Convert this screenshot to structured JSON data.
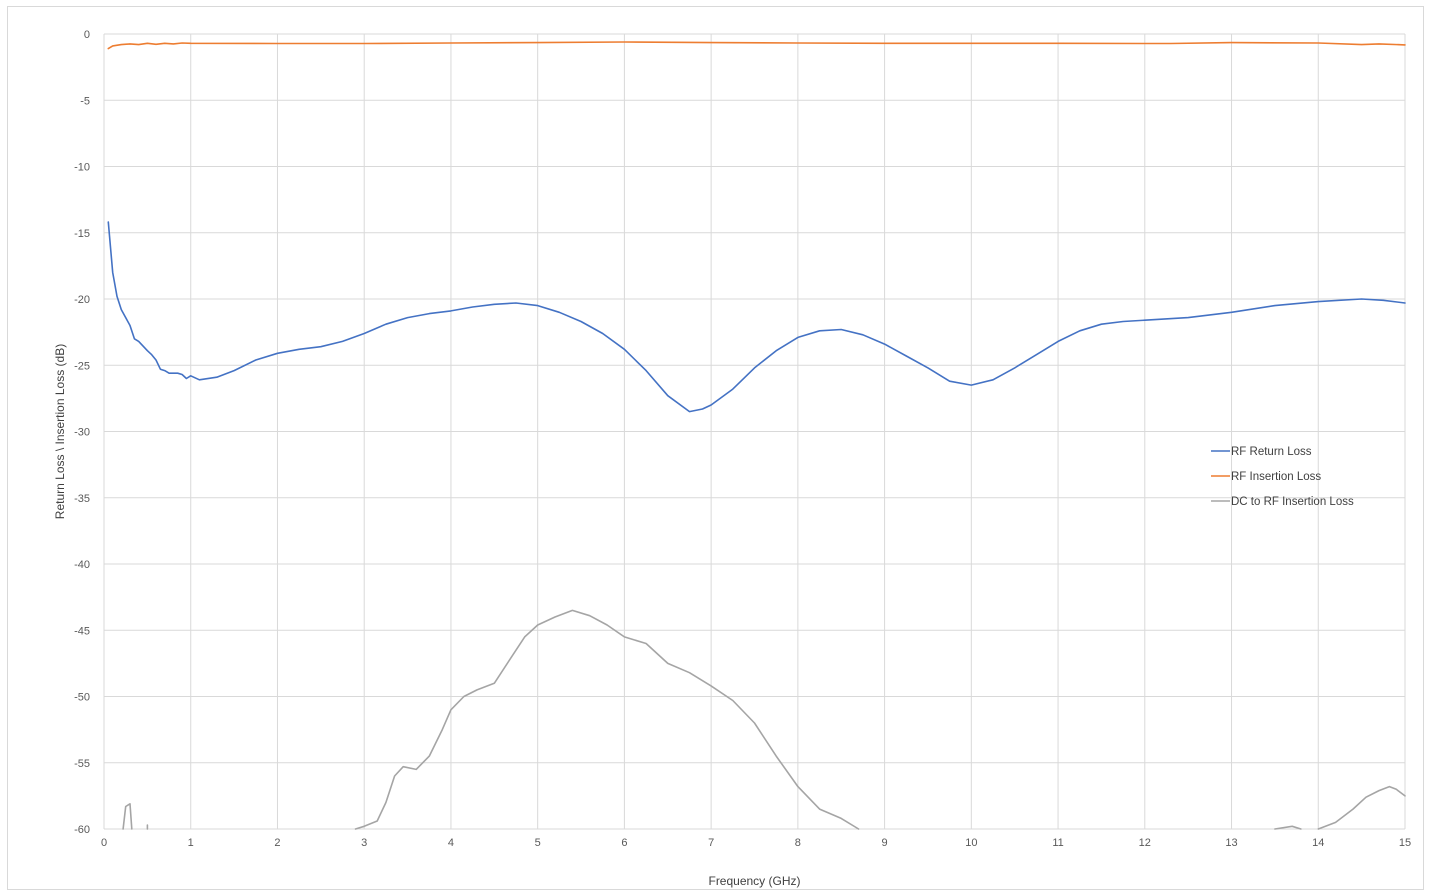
{
  "chart_data": {
    "type": "line",
    "title": "",
    "xlabel": "Frequency (GHz)",
    "ylabel": "Return Loss \\ Insertion Loss (dB)",
    "xlim": [
      0,
      15
    ],
    "ylim": [
      -60,
      0
    ],
    "x_ticks": [
      0,
      1,
      2,
      3,
      4,
      5,
      6,
      7,
      8,
      9,
      10,
      11,
      12,
      13,
      14,
      15
    ],
    "y_ticks": [
      0,
      -5,
      -10,
      -15,
      -20,
      -25,
      -30,
      -35,
      -40,
      -45,
      -50,
      -55,
      -60
    ],
    "grid": "vertical and horizontal",
    "legend_position": "right",
    "series": [
      {
        "name": "RF Return Loss",
        "color": "#4472c4",
        "points": [
          [
            0.05,
            -14.2
          ],
          [
            0.1,
            -18
          ],
          [
            0.15,
            -19.8
          ],
          [
            0.2,
            -20.8
          ],
          [
            0.3,
            -22
          ],
          [
            0.35,
            -23
          ],
          [
            0.4,
            -23.2
          ],
          [
            0.5,
            -23.9
          ],
          [
            0.55,
            -24.2
          ],
          [
            0.6,
            -24.6
          ],
          [
            0.65,
            -25.3
          ],
          [
            0.7,
            -25.4
          ],
          [
            0.75,
            -25.6
          ],
          [
            0.85,
            -25.6
          ],
          [
            0.9,
            -25.7
          ],
          [
            0.95,
            -26
          ],
          [
            1.0,
            -25.8
          ],
          [
            1.1,
            -26.1
          ],
          [
            1.3,
            -25.9
          ],
          [
            1.5,
            -25.4
          ],
          [
            1.75,
            -24.6
          ],
          [
            2.0,
            -24.1
          ],
          [
            2.25,
            -23.8
          ],
          [
            2.5,
            -23.6
          ],
          [
            2.75,
            -23.2
          ],
          [
            3.0,
            -22.6
          ],
          [
            3.25,
            -21.9
          ],
          [
            3.5,
            -21.4
          ],
          [
            3.75,
            -21.1
          ],
          [
            4.0,
            -20.9
          ],
          [
            4.25,
            -20.6
          ],
          [
            4.5,
            -20.4
          ],
          [
            4.75,
            -20.3
          ],
          [
            5.0,
            -20.5
          ],
          [
            5.25,
            -21
          ],
          [
            5.5,
            -21.7
          ],
          [
            5.75,
            -22.6
          ],
          [
            6.0,
            -23.8
          ],
          [
            6.25,
            -25.4
          ],
          [
            6.5,
            -27.3
          ],
          [
            6.75,
            -28.5
          ],
          [
            6.9,
            -28.3
          ],
          [
            7.0,
            -28
          ],
          [
            7.25,
            -26.8
          ],
          [
            7.5,
            -25.2
          ],
          [
            7.75,
            -23.9
          ],
          [
            8.0,
            -22.9
          ],
          [
            8.25,
            -22.4
          ],
          [
            8.5,
            -22.3
          ],
          [
            8.75,
            -22.7
          ],
          [
            9.0,
            -23.4
          ],
          [
            9.25,
            -24.3
          ],
          [
            9.5,
            -25.2
          ],
          [
            9.75,
            -26.2
          ],
          [
            10.0,
            -26.5
          ],
          [
            10.25,
            -26.1
          ],
          [
            10.5,
            -25.2
          ],
          [
            10.75,
            -24.2
          ],
          [
            11.0,
            -23.2
          ],
          [
            11.25,
            -22.4
          ],
          [
            11.5,
            -21.9
          ],
          [
            11.75,
            -21.7
          ],
          [
            12.0,
            -21.6
          ],
          [
            12.5,
            -21.4
          ],
          [
            13.0,
            -21
          ],
          [
            13.5,
            -20.5
          ],
          [
            14.0,
            -20.2
          ],
          [
            14.5,
            -20
          ],
          [
            14.75,
            -20.1
          ],
          [
            15.0,
            -20.3
          ]
        ]
      },
      {
        "name": "RF Insertion Loss",
        "color": "#ed7d31",
        "points": [
          [
            0.05,
            -1.1
          ],
          [
            0.1,
            -0.9
          ],
          [
            0.2,
            -0.8
          ],
          [
            0.3,
            -0.75
          ],
          [
            0.4,
            -0.8
          ],
          [
            0.5,
            -0.7
          ],
          [
            0.6,
            -0.78
          ],
          [
            0.7,
            -0.7
          ],
          [
            0.8,
            -0.75
          ],
          [
            0.9,
            -0.68
          ],
          [
            1.0,
            -0.7
          ],
          [
            2.0,
            -0.72
          ],
          [
            3.0,
            -0.72
          ],
          [
            4.0,
            -0.68
          ],
          [
            5.0,
            -0.65
          ],
          [
            6.0,
            -0.6
          ],
          [
            7.0,
            -0.65
          ],
          [
            8.0,
            -0.68
          ],
          [
            9.0,
            -0.7
          ],
          [
            10.0,
            -0.7
          ],
          [
            11.0,
            -0.7
          ],
          [
            12.0,
            -0.72
          ],
          [
            12.3,
            -0.72
          ],
          [
            13.0,
            -0.65
          ],
          [
            14.0,
            -0.68
          ],
          [
            14.5,
            -0.8
          ],
          [
            14.7,
            -0.75
          ],
          [
            15.0,
            -0.82
          ]
        ]
      },
      {
        "name": "DC to RF Insertion Loss",
        "color": "#a5a5a5",
        "segments": [
          [
            [
              0.22,
              -60
            ],
            [
              0.25,
              -58.3
            ],
            [
              0.3,
              -58.1
            ],
            [
              0.32,
              -60
            ]
          ],
          [
            [
              0.5,
              -60
            ],
            [
              0.5,
              -59.7
            ]
          ],
          [
            [
              2.9,
              -60
            ],
            [
              3.0,
              -59.8
            ],
            [
              3.15,
              -59.4
            ],
            [
              3.25,
              -58
            ],
            [
              3.35,
              -56
            ],
            [
              3.45,
              -55.3
            ],
            [
              3.6,
              -55.5
            ],
            [
              3.75,
              -54.5
            ],
            [
              3.9,
              -52.5
            ],
            [
              4.0,
              -51
            ],
            [
              4.15,
              -50
            ],
            [
              4.3,
              -49.5
            ],
            [
              4.5,
              -49
            ],
            [
              4.7,
              -47
            ],
            [
              4.85,
              -45.5
            ],
            [
              5.0,
              -44.6
            ],
            [
              5.2,
              -44
            ],
            [
              5.4,
              -43.5
            ],
            [
              5.6,
              -43.9
            ],
            [
              5.8,
              -44.6
            ],
            [
              6.0,
              -45.5
            ],
            [
              6.25,
              -46
            ],
            [
              6.5,
              -47.5
            ],
            [
              6.75,
              -48.2
            ],
            [
              7.0,
              -49.2
            ],
            [
              7.25,
              -50.3
            ],
            [
              7.5,
              -52
            ],
            [
              7.75,
              -54.5
            ],
            [
              8.0,
              -56.8
            ],
            [
              8.25,
              -58.5
            ],
            [
              8.5,
              -59.2
            ],
            [
              8.7,
              -60
            ]
          ],
          [
            [
              13.5,
              -60
            ],
            [
              13.7,
              -59.8
            ],
            [
              13.8,
              -60
            ]
          ],
          [
            [
              14.0,
              -60
            ],
            [
              14.2,
              -59.5
            ],
            [
              14.4,
              -58.5
            ],
            [
              14.55,
              -57.6
            ],
            [
              14.7,
              -57.1
            ],
            [
              14.82,
              -56.8
            ],
            [
              14.9,
              -57
            ],
            [
              15.0,
              -57.5
            ]
          ]
        ]
      }
    ]
  }
}
